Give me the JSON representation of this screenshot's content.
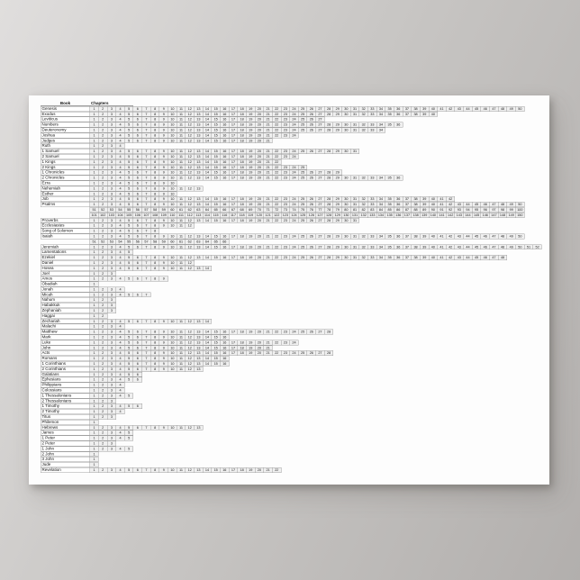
{
  "page": {
    "background_gradient": [
      "#e0dedd",
      "#b2afad"
    ],
    "poster_color": "#fdfdfd"
  },
  "table": {
    "header": {
      "book": "Book",
      "chapters": "Chapters"
    },
    "cell_colors": {
      "fill": "#efefef",
      "border": "#a0a0a0",
      "text": "#222222"
    },
    "books": [
      {
        "name": "Genesis",
        "chapters": 50
      },
      {
        "name": "Exodus",
        "chapters": 40
      },
      {
        "name": "Leviticus",
        "chapters": 27
      },
      {
        "name": "Numbers",
        "chapters": 36
      },
      {
        "name": "Deuteronomy",
        "chapters": 34
      },
      {
        "name": "Joshua",
        "chapters": 24
      },
      {
        "name": "Judges",
        "chapters": 21
      },
      {
        "name": "Ruth",
        "chapters": 4
      },
      {
        "name": "1 Samuel",
        "chapters": 31
      },
      {
        "name": "2 Samuel",
        "chapters": 24
      },
      {
        "name": "1 Kings",
        "chapters": 22
      },
      {
        "name": "2 Kings",
        "chapters": 25
      },
      {
        "name": "1 Chronicles",
        "chapters": 29
      },
      {
        "name": "2 Chronicles",
        "chapters": 36
      },
      {
        "name": "Ezra",
        "chapters": 10
      },
      {
        "name": "Nehemiah",
        "chapters": 13
      },
      {
        "name": "Esther",
        "chapters": 10
      },
      {
        "name": "Job",
        "chapters": 42
      },
      {
        "name": "Psalms",
        "chapters": 150,
        "wrap": 50
      },
      {
        "name": "Proverbs",
        "chapters": 31
      },
      {
        "name": "Ecclesiastes",
        "chapters": 12
      },
      {
        "name": "Song of Solomon",
        "chapters": 8
      },
      {
        "name": "Isaiah",
        "chapters": 66,
        "wrap": 50
      },
      {
        "name": "Jeremiah",
        "chapters": 52
      },
      {
        "name": "Lamentations",
        "chapters": 5
      },
      {
        "name": "Ezekiel",
        "chapters": 48
      },
      {
        "name": "Daniel",
        "chapters": 12
      },
      {
        "name": "Hosea",
        "chapters": 14
      },
      {
        "name": "Joel",
        "chapters": 3
      },
      {
        "name": "Amos",
        "chapters": 9
      },
      {
        "name": "Obadiah",
        "chapters": 1
      },
      {
        "name": "Jonah",
        "chapters": 4
      },
      {
        "name": "Micah",
        "chapters": 7
      },
      {
        "name": "Nahum",
        "chapters": 3
      },
      {
        "name": "Habakkuk",
        "chapters": 3
      },
      {
        "name": "Zephaniah",
        "chapters": 3
      },
      {
        "name": "Haggai",
        "chapters": 2
      },
      {
        "name": "Zechariah",
        "chapters": 14
      },
      {
        "name": "Malachi",
        "chapters": 4
      },
      {
        "name": "Matthew",
        "chapters": 28
      },
      {
        "name": "Mark",
        "chapters": 16
      },
      {
        "name": "Luke",
        "chapters": 24
      },
      {
        "name": "John",
        "chapters": 21
      },
      {
        "name": "Acts",
        "chapters": 28
      },
      {
        "name": "Romans",
        "chapters": 16
      },
      {
        "name": "1 Corinthians",
        "chapters": 16
      },
      {
        "name": "2 Corinthians",
        "chapters": 13
      },
      {
        "name": "Galatians",
        "chapters": 6
      },
      {
        "name": "Ephesians",
        "chapters": 6
      },
      {
        "name": "Philippians",
        "chapters": 4
      },
      {
        "name": "Colossians",
        "chapters": 4
      },
      {
        "name": "1 Thessalonians",
        "chapters": 5
      },
      {
        "name": "2 Thessalonians",
        "chapters": 3
      },
      {
        "name": "1 Timothy",
        "chapters": 6
      },
      {
        "name": "2 Timothy",
        "chapters": 4
      },
      {
        "name": "Titus",
        "chapters": 3
      },
      {
        "name": "Philemon",
        "chapters": 1
      },
      {
        "name": "Hebrews",
        "chapters": 13
      },
      {
        "name": "James",
        "chapters": 5
      },
      {
        "name": "1 Peter",
        "chapters": 5
      },
      {
        "name": "2 Peter",
        "chapters": 3
      },
      {
        "name": "1 John",
        "chapters": 5
      },
      {
        "name": "2 John",
        "chapters": 1
      },
      {
        "name": "3 John",
        "chapters": 1
      },
      {
        "name": "Jude",
        "chapters": 1
      },
      {
        "name": "Revelation",
        "chapters": 22
      }
    ]
  }
}
